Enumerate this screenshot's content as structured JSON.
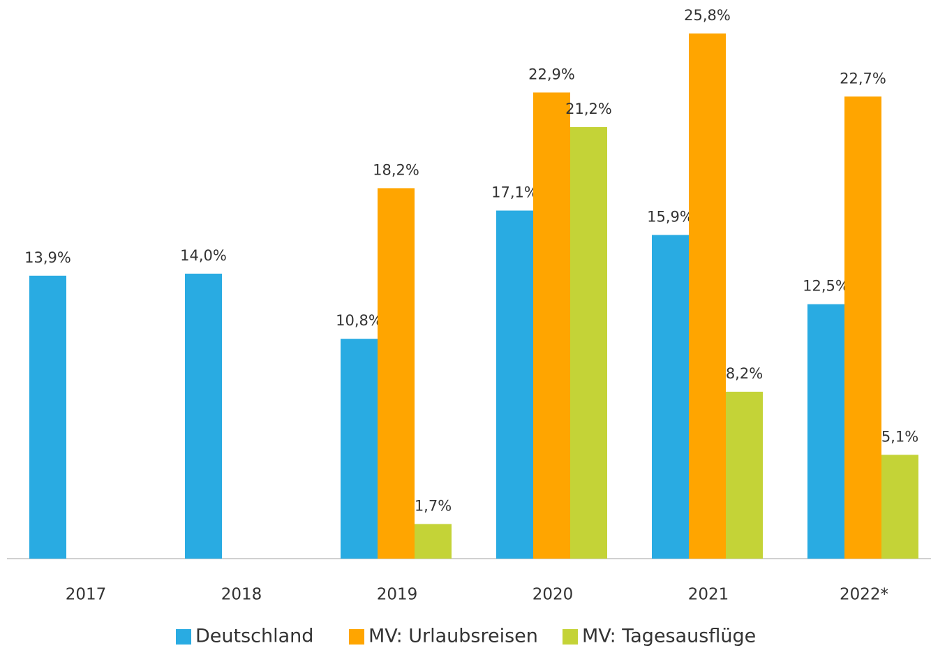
{
  "chart_data": {
    "type": "bar",
    "categories": [
      "2017",
      "2018",
      "2019",
      "2020",
      "2021",
      "2022*"
    ],
    "series": [
      {
        "name": "Deutschland",
        "color": "#29abe2",
        "values": [
          13.9,
          14.0,
          10.8,
          17.1,
          15.9,
          12.5
        ],
        "value_labels": [
          "13,9%",
          "14,0%",
          "10,8%",
          "17,1%",
          "15,9%",
          "12,5%"
        ]
      },
      {
        "name": "MV: Urlaubsreisen",
        "color": "#ffa500",
        "values": [
          null,
          null,
          18.2,
          22.9,
          25.8,
          22.7
        ],
        "value_labels": [
          null,
          null,
          "18,2%",
          "22,9%",
          "25,8%",
          "22,7%"
        ]
      },
      {
        "name": "MV: Tagesausflüge",
        "color": "#c4d337",
        "values": [
          null,
          null,
          1.7,
          21.2,
          8.2,
          5.1
        ],
        "value_labels": [
          null,
          null,
          "1,7%",
          "21,2%",
          "8,2%",
          "5,1%"
        ]
      }
    ],
    "legend": "bottom"
  }
}
